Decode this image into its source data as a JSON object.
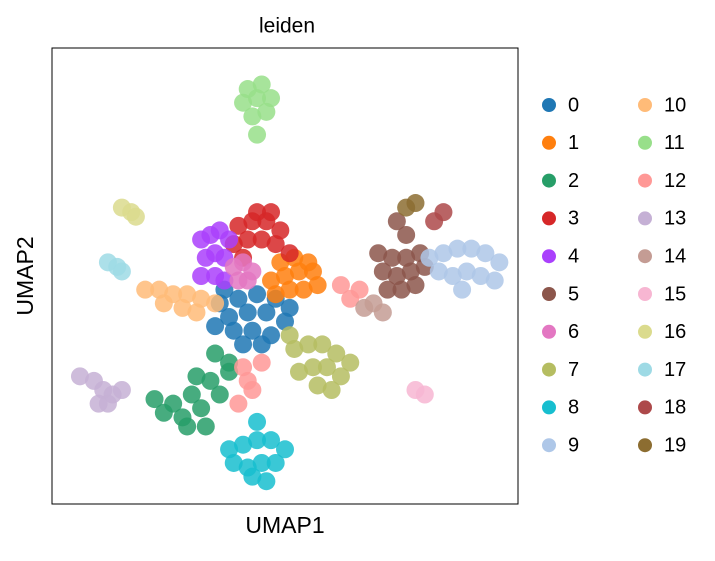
{
  "chart_data": {
    "type": "scatter",
    "title": "leiden",
    "x_label": "UMAP1",
    "y_label": "UMAP2",
    "xlim": [
      0,
      100
    ],
    "ylim": [
      0,
      100
    ],
    "grid": false,
    "legend": "outside-right",
    "series": [
      {
        "name": "0",
        "color": "#1f77b4",
        "x": [
          36,
          40,
          44,
          48,
          51,
          38,
          42,
          46,
          50,
          35,
          39,
          43,
          47,
          41,
          45,
          37
        ],
        "values": [
          44,
          45,
          46,
          45,
          43,
          41,
          42,
          42,
          40,
          39,
          38,
          38,
          37,
          35,
          35,
          47
        ]
      },
      {
        "name": "1",
        "color": "#ff7f0e",
        "x": [
          47,
          50,
          53,
          56,
          49,
          52,
          55,
          48,
          51,
          54,
          57
        ],
        "values": [
          49,
          50,
          51,
          51,
          53,
          54,
          53,
          46,
          47,
          47,
          48
        ]
      },
      {
        "name": "2",
        "color": "#279e68",
        "x": [
          22,
          26,
          30,
          34,
          38,
          24,
          28,
          32,
          36,
          29,
          33,
          31,
          35,
          38
        ],
        "values": [
          23,
          22,
          24,
          27,
          31,
          20,
          19,
          21,
          24,
          17,
          17,
          28,
          33,
          29
        ]
      },
      {
        "name": "3",
        "color": "#d62728",
        "x": [
          39,
          42,
          45,
          48,
          51,
          40,
          43,
          46,
          49,
          44,
          47,
          41
        ],
        "values": [
          57,
          58,
          58,
          57,
          55,
          61,
          62,
          62,
          60,
          64,
          64,
          54
        ]
      },
      {
        "name": "4",
        "color": "#aa40fc",
        "x": [
          32,
          34,
          36,
          38,
          33,
          35,
          37,
          32,
          35,
          37
        ],
        "values": [
          58,
          59,
          60,
          58,
          54,
          55,
          54,
          50,
          50,
          49
        ]
      },
      {
        "name": "5",
        "color": "#8c564b",
        "x": [
          70,
          73,
          76,
          79,
          71,
          74,
          77,
          80,
          72,
          75,
          78,
          76,
          74
        ],
        "values": [
          55,
          54,
          54,
          55,
          51,
          50,
          51,
          52,
          47,
          47,
          48,
          59,
          62
        ]
      },
      {
        "name": "6",
        "color": "#e377c2",
        "x": [
          39,
          41,
          43,
          42,
          40
        ],
        "values": [
          52,
          53,
          51,
          49,
          49
        ]
      },
      {
        "name": "7",
        "color": "#b5bd61",
        "x": [
          52,
          55,
          58,
          61,
          64,
          53,
          56,
          59,
          62,
          57,
          60,
          51
        ],
        "values": [
          34,
          35,
          35,
          33,
          31,
          29,
          30,
          30,
          28,
          26,
          25,
          37
        ]
      },
      {
        "name": "8",
        "color": "#17becf",
        "x": [
          38,
          41,
          44,
          47,
          50,
          39,
          42,
          45,
          48,
          43,
          46,
          44
        ],
        "values": [
          12,
          13,
          14,
          14,
          12,
          9,
          8,
          9,
          9,
          6,
          5,
          18
        ]
      },
      {
        "name": "9",
        "color": "#aec7e8",
        "x": [
          81,
          84,
          87,
          90,
          93,
          96,
          83,
          86,
          89,
          92,
          95,
          88
        ],
        "values": [
          54,
          55,
          56,
          56,
          55,
          53,
          51,
          50,
          51,
          50,
          49,
          47
        ]
      },
      {
        "name": "10",
        "color": "#ffbb78",
        "x": [
          20,
          23,
          26,
          29,
          32,
          35,
          24,
          28,
          31
        ],
        "values": [
          47,
          47,
          46,
          46,
          45,
          44,
          44,
          43,
          42
        ]
      },
      {
        "name": "11",
        "color": "#98df8a",
        "x": [
          41,
          44,
          47,
          43,
          46,
          45,
          44,
          42
        ],
        "values": [
          88,
          89,
          89,
          85,
          86,
          92,
          81,
          91
        ]
      },
      {
        "name": "12",
        "color": "#ff9896",
        "x": [
          42,
          40,
          41,
          45,
          66,
          64,
          62,
          43
        ],
        "values": [
          27,
          22,
          30,
          31,
          47,
          45,
          48,
          25
        ]
      },
      {
        "name": "13",
        "color": "#c5b0d5",
        "x": [
          6,
          9,
          11,
          13,
          15,
          10,
          12
        ],
        "values": [
          28,
          27,
          25,
          24,
          25,
          22,
          22
        ]
      },
      {
        "name": "14",
        "color": "#c49c94",
        "x": [
          67,
          69,
          71
        ],
        "values": [
          43,
          44,
          42
        ]
      },
      {
        "name": "15",
        "color": "#f7b6d2",
        "x": [
          78,
          80
        ],
        "values": [
          25,
          24
        ]
      },
      {
        "name": "16",
        "color": "#dbdb8d",
        "x": [
          15,
          17,
          18
        ],
        "values": [
          65,
          64,
          63
        ]
      },
      {
        "name": "17",
        "color": "#9edae5",
        "x": [
          12,
          14,
          15
        ],
        "values": [
          53,
          52,
          51
        ]
      },
      {
        "name": "18",
        "color": "#ad494a",
        "x": [
          82,
          84
        ],
        "values": [
          62,
          64
        ]
      },
      {
        "name": "19",
        "color": "#8c6d31",
        "x": [
          76,
          78
        ],
        "values": [
          65,
          66
        ]
      }
    ]
  }
}
